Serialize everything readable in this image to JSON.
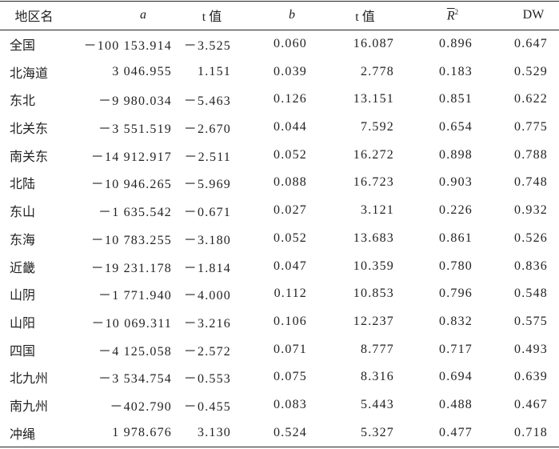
{
  "table": {
    "header": [
      "地区名",
      "a",
      "t 值",
      "b",
      "t 值",
      {
        "text": "R",
        "sup": "2"
      },
      "DW"
    ],
    "rows": [
      [
        "全国",
        "－100 153.914",
        "－3.525",
        "0.060",
        "16.087",
        "0.896",
        "0.647"
      ],
      [
        "北海道",
        "3 046.955",
        "1.151",
        "0.039",
        "2.778",
        "0.183",
        "0.529"
      ],
      [
        "东北",
        "－9 980.034",
        "－5.463",
        "0.126",
        "13.151",
        "0.851",
        "0.622"
      ],
      [
        "北关东",
        "－3 551.519",
        "－2.670",
        "0.044",
        "7.592",
        "0.654",
        "0.775"
      ],
      [
        "南关东",
        "－14 912.917",
        "－2.511",
        "0.052",
        "16.272",
        "0.898",
        "0.788"
      ],
      [
        "北陆",
        "－10 946.265",
        "－5.969",
        "0.088",
        "16.723",
        "0.903",
        "0.748"
      ],
      [
        "东山",
        "－1 635.542",
        "－0.671",
        "0.027",
        "3.121",
        "0.226",
        "0.932"
      ],
      [
        "东海",
        "－10 783.255",
        "－3.180",
        "0.052",
        "13.683",
        "0.861",
        "0.526"
      ],
      [
        "近畿",
        "－19 231.178",
        "－1.814",
        "0.047",
        "10.359",
        "0.780",
        "0.836"
      ],
      [
        "山阴",
        "－1 771.940",
        "－4.000",
        "0.112",
        "10.853",
        "0.796",
        "0.548"
      ],
      [
        "山阳",
        "－10 069.311",
        "－3.216",
        "0.106",
        "12.237",
        "0.832",
        "0.575"
      ],
      [
        "四国",
        "－4 125.058",
        "－2.572",
        "0.071",
        "8.777",
        "0.717",
        "0.493"
      ],
      [
        "北九州",
        "－3 534.754",
        "－0.553",
        "0.075",
        "8.316",
        "0.694",
        "0.639"
      ],
      [
        "南九州",
        "－402.790",
        "－0.455",
        "0.083",
        "5.443",
        "0.488",
        "0.467"
      ],
      [
        "冲绳",
        "1 978.676",
        "3.130",
        "0.524",
        "5.327",
        "0.477",
        "0.718"
      ]
    ]
  }
}
